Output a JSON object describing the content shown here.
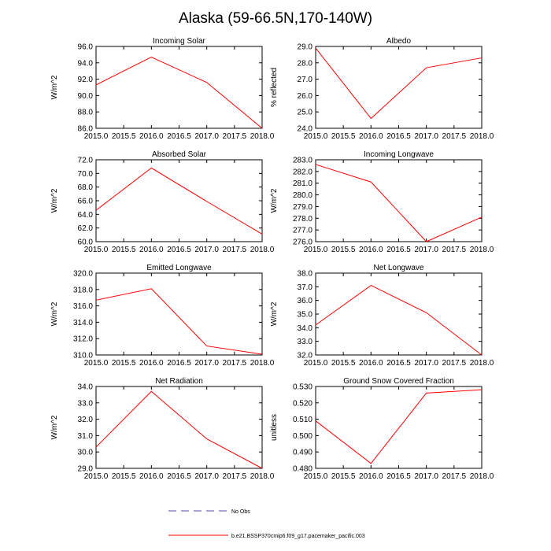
{
  "title": "Alaska (59-66.5N,170-140W)",
  "colors": {
    "model_line": "#ff0000",
    "obs_line": "#5a4aa8",
    "axis": "#000000"
  },
  "legend": [
    {
      "label": "No Obs",
      "style": "dashed",
      "color": "#5a4aa8"
    },
    {
      "label": "b.e21.BSSP370cmip6.f09_g17.pacemaker_pacific.003",
      "style": "solid",
      "color": "#ff0000"
    }
  ],
  "chart_data": [
    {
      "type": "line",
      "title": "Incoming Solar",
      "ylabel": "W/m^2",
      "x": [
        2015,
        2016,
        2017,
        2018
      ],
      "ylim": [
        86,
        96
      ],
      "xticks": [
        "2015.0",
        "2015.5",
        "2016.0",
        "2016.5",
        "2017.0",
        "2017.5",
        "2018.0"
      ],
      "yticks": [
        "86.0",
        "88.0",
        "90.0",
        "92.0",
        "94.0",
        "96.0"
      ],
      "series": [
        {
          "values": [
            91.3,
            94.7,
            91.6,
            86.0
          ]
        }
      ]
    },
    {
      "type": "line",
      "title": "Albedo",
      "ylabel": "% reflected",
      "x": [
        2015,
        2016,
        2017,
        2018
      ],
      "ylim": [
        24,
        29
      ],
      "xticks": [
        "2015.0",
        "2015.5",
        "2016.0",
        "2016.5",
        "2017.0",
        "2017.5",
        "2018.0"
      ],
      "yticks": [
        "24.0",
        "25.0",
        "26.0",
        "27.0",
        "28.0",
        "29.0"
      ],
      "series": [
        {
          "values": [
            28.9,
            24.6,
            27.7,
            28.3
          ]
        }
      ]
    },
    {
      "type": "line",
      "title": "Absorbed Solar",
      "ylabel": "W/m^2",
      "x": [
        2015,
        2016,
        2017,
        2018
      ],
      "ylim": [
        60,
        72
      ],
      "xticks": [
        "2015.0",
        "2015.5",
        "2016.0",
        "2016.5",
        "2017.0",
        "2017.5",
        "2018.0"
      ],
      "yticks": [
        "60.0",
        "62.0",
        "64.0",
        "66.0",
        "68.0",
        "70.0",
        "72.0"
      ],
      "series": [
        {
          "values": [
            64.6,
            70.8,
            65.9,
            61.1
          ]
        }
      ]
    },
    {
      "type": "line",
      "title": "Incoming Longwave",
      "ylabel": "W/m^2",
      "x": [
        2015,
        2016,
        2017,
        2018
      ],
      "ylim": [
        276,
        283
      ],
      "xticks": [
        "2015.0",
        "2015.5",
        "2016.0",
        "2016.5",
        "2017.0",
        "2017.5",
        "2018.0"
      ],
      "yticks": [
        "276.0",
        "277.0",
        "278.0",
        "279.0",
        "280.0",
        "281.0",
        "282.0",
        "283.0"
      ],
      "series": [
        {
          "values": [
            282.6,
            281.1,
            276.0,
            278.1
          ]
        }
      ]
    },
    {
      "type": "line",
      "title": "Emitted Longwave",
      "ylabel": "W/m^2",
      "x": [
        2015,
        2016,
        2017,
        2018
      ],
      "ylim": [
        310,
        320
      ],
      "xticks": [
        "2015.0",
        "2015.5",
        "2016.0",
        "2016.5",
        "2017.0",
        "2017.5",
        "2018.0"
      ],
      "yticks": [
        "310.0",
        "312.0",
        "314.0",
        "316.0",
        "318.0",
        "320.0"
      ],
      "series": [
        {
          "values": [
            316.7,
            318.1,
            311.1,
            310.1
          ]
        }
      ]
    },
    {
      "type": "line",
      "title": "Net Longwave",
      "ylabel": "W/m^2",
      "x": [
        2015,
        2016,
        2017,
        2018
      ],
      "ylim": [
        32,
        38
      ],
      "xticks": [
        "2015.0",
        "2015.5",
        "2016.0",
        "2016.5",
        "2017.0",
        "2017.5",
        "2018.0"
      ],
      "yticks": [
        "32.0",
        "33.0",
        "34.0",
        "35.0",
        "36.0",
        "37.0",
        "38.0"
      ],
      "series": [
        {
          "values": [
            34.2,
            37.1,
            35.1,
            32.0
          ]
        }
      ]
    },
    {
      "type": "line",
      "title": "Net Radiation",
      "ylabel": "W/m^2",
      "x": [
        2015,
        2016,
        2017,
        2018
      ],
      "ylim": [
        29,
        34
      ],
      "xticks": [
        "2015.0",
        "2015.5",
        "2016.0",
        "2016.5",
        "2017.0",
        "2017.5",
        "2018.0"
      ],
      "yticks": [
        "29.0",
        "30.0",
        "31.0",
        "32.0",
        "33.0",
        "34.0"
      ],
      "series": [
        {
          "values": [
            30.3,
            33.7,
            30.8,
            29.0
          ]
        }
      ]
    },
    {
      "type": "line",
      "title": "Ground Snow Covered Fraction",
      "ylabel": "unitless",
      "x": [
        2015,
        2016,
        2017,
        2018
      ],
      "ylim": [
        0.48,
        0.53
      ],
      "xticks": [
        "2015.0",
        "2015.5",
        "2016.0",
        "2016.5",
        "2017.0",
        "2017.5",
        "2018.0"
      ],
      "yticks": [
        "0.480",
        "0.490",
        "0.500",
        "0.510",
        "0.520",
        "0.530"
      ],
      "series": [
        {
          "values": [
            0.509,
            0.483,
            0.526,
            0.528
          ]
        }
      ]
    }
  ]
}
